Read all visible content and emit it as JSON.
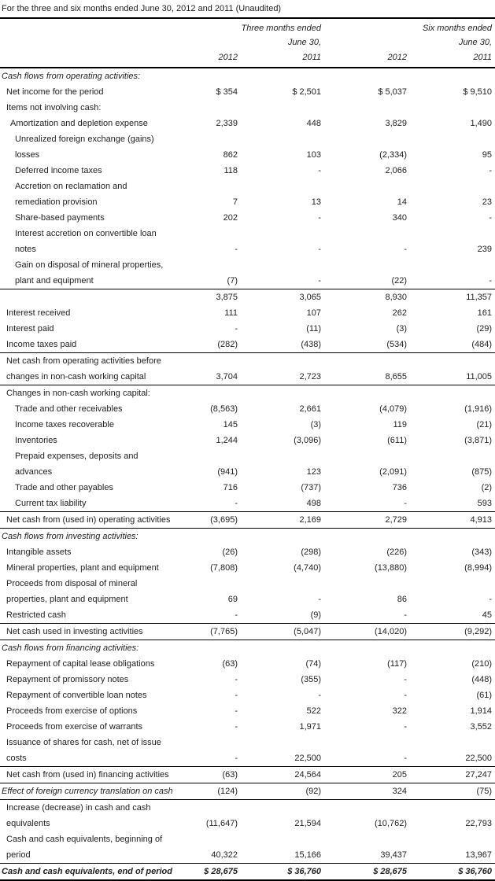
{
  "title": "For the three and six months ended June 30, 2012 and 2011 (Unaudited)",
  "colors": {
    "text": "#222222",
    "border": "#000000",
    "background": "#ffffff"
  },
  "header": {
    "group1_line1": "Three months ended",
    "group1_line2": "June 30,",
    "group2_line1": "Six months ended",
    "group2_line2": "June 30,",
    "years": [
      "2012",
      "2011",
      "2012",
      "2011"
    ]
  },
  "rows": [
    {
      "label": "Cash flows from operating activities:",
      "style": "section",
      "indent": 0,
      "values": [
        "",
        "",
        "",
        ""
      ]
    },
    {
      "label": "Net income for the period",
      "style": "item",
      "indent": 1,
      "values": [
        "$ 354",
        "$ 2,501",
        "$ 5,037",
        "$ 9,510"
      ]
    },
    {
      "label": "Items not involving cash:",
      "style": "item",
      "indent": 1,
      "values": [
        "",
        "",
        "",
        ""
      ]
    },
    {
      "label": "Amortization and depletion expense",
      "style": "item",
      "indent": 2,
      "values": [
        "2,339",
        "448",
        "3,829",
        "1,490"
      ]
    },
    {
      "label": "Unrealized foreign exchange (gains)\nlosses",
      "style": "item",
      "indent": 3,
      "values": [
        "862",
        "103",
        "(2,334)",
        "95"
      ]
    },
    {
      "label": "Deferred income taxes",
      "style": "item",
      "indent": 3,
      "values": [
        "118",
        "-",
        "2,066",
        "-"
      ]
    },
    {
      "label": "Accretion on reclamation and\nremediation provision",
      "style": "item",
      "indent": 3,
      "values": [
        "7",
        "13",
        "14",
        "23"
      ]
    },
    {
      "label": "Share-based payments",
      "style": "item",
      "indent": 3,
      "values": [
        "202",
        "-",
        "340",
        "-"
      ]
    },
    {
      "label": "Interest accretion on convertible loan\nnotes",
      "style": "item",
      "indent": 3,
      "values": [
        "-",
        "-",
        "-",
        "239"
      ]
    },
    {
      "label": "Gain on disposal of mineral properties,\nplant and equipment",
      "style": "item",
      "indent": 3,
      "values": [
        "(7)",
        "-",
        "(22)",
        "-"
      ],
      "border_bottom": true
    },
    {
      "label": "",
      "style": "item",
      "indent": 1,
      "values": [
        "3,875",
        "3,065",
        "8,930",
        "11,357"
      ]
    },
    {
      "label": "Interest received",
      "style": "item",
      "indent": 1,
      "values": [
        "111",
        "107",
        "262",
        "161"
      ]
    },
    {
      "label": "Interest paid",
      "style": "item",
      "indent": 1,
      "values": [
        "-",
        "(11)",
        "(3)",
        "(29)"
      ]
    },
    {
      "label": "Income taxes paid",
      "style": "item",
      "indent": 1,
      "values": [
        "(282)",
        "(438)",
        "(534)",
        "(484)"
      ],
      "border_bottom": true
    },
    {
      "label": "Net cash from operating activities before\nchanges in non-cash working capital",
      "style": "item",
      "indent": 1,
      "values": [
        "3,704",
        "2,723",
        "8,655",
        "11,005"
      ],
      "border_bottom": true
    },
    {
      "label": "Changes in non-cash working capital:",
      "style": "item",
      "indent": 1,
      "values": [
        "",
        "",
        "",
        ""
      ]
    },
    {
      "label": "Trade and other receivables",
      "style": "item",
      "indent": 3,
      "values": [
        "(8,563)",
        "2,661",
        "(4,079)",
        "(1,916)"
      ]
    },
    {
      "label": "Income taxes recoverable",
      "style": "item",
      "indent": 3,
      "values": [
        "145",
        "(3)",
        "119",
        "(21)"
      ]
    },
    {
      "label": "Inventories",
      "style": "item",
      "indent": 3,
      "values": [
        "1,244",
        "(3,096)",
        "(611)",
        "(3,871)"
      ]
    },
    {
      "label": "Prepaid expenses, deposits and\nadvances",
      "style": "item",
      "indent": 3,
      "values": [
        "(941)",
        "123",
        "(2,091)",
        "(875)"
      ]
    },
    {
      "label": "Trade and other payables",
      "style": "item",
      "indent": 3,
      "values": [
        "716",
        "(737)",
        "736",
        "(2)"
      ]
    },
    {
      "label": "Current tax liability",
      "style": "item",
      "indent": 3,
      "values": [
        "-",
        "498",
        "-",
        "593"
      ],
      "border_bottom": true
    },
    {
      "label": "Net cash from (used in) operating activities",
      "style": "item",
      "indent": 1,
      "values": [
        "(3,695)",
        "2,169",
        "2,729",
        "4,913"
      ],
      "border_bottom": true
    },
    {
      "label": "Cash flows from investing activities:",
      "style": "section",
      "indent": 0,
      "values": [
        "",
        "",
        "",
        ""
      ]
    },
    {
      "label": "Intangible assets",
      "style": "item",
      "indent": 1,
      "values": [
        "(26)",
        "(298)",
        "(226)",
        "(343)"
      ]
    },
    {
      "label": "Mineral properties, plant and equipment",
      "style": "item",
      "indent": 1,
      "values": [
        "(7,808)",
        "(4,740)",
        "(13,880)",
        "(8,994)"
      ]
    },
    {
      "label": "Proceeds from disposal of mineral\nproperties, plant and equipment",
      "style": "item",
      "indent": 1,
      "values": [
        "69",
        "-",
        "86",
        "-"
      ]
    },
    {
      "label": "Restricted cash",
      "style": "item",
      "indent": 1,
      "values": [
        "-",
        "(9)",
        "-",
        "45"
      ],
      "border_bottom": true
    },
    {
      "label": "Net cash used in investing activities",
      "style": "item",
      "indent": 1,
      "values": [
        "(7,765)",
        "(5,047)",
        "(14,020)",
        "(9,292)"
      ],
      "border_bottom": true
    },
    {
      "label": "Cash flows from financing activities:",
      "style": "section",
      "indent": 0,
      "values": [
        "",
        "",
        "",
        ""
      ]
    },
    {
      "label": "Repayment of capital lease obligations",
      "style": "item",
      "indent": 1,
      "values": [
        "(63)",
        "(74)",
        "(117)",
        "(210)"
      ]
    },
    {
      "label": "Repayment of promissory notes",
      "style": "item",
      "indent": 1,
      "values": [
        "-",
        "(355)",
        "-",
        "(448)"
      ]
    },
    {
      "label": "Repayment of convertible loan notes",
      "style": "item",
      "indent": 1,
      "values": [
        "-",
        "-",
        "-",
        "(61)"
      ]
    },
    {
      "label": "Proceeds from exercise of options",
      "style": "item",
      "indent": 1,
      "values": [
        "-",
        "522",
        "322",
        "1,914"
      ]
    },
    {
      "label": "Proceeds from exercise of warrants",
      "style": "item",
      "indent": 1,
      "values": [
        "-",
        "1,971",
        "-",
        "3,552"
      ]
    },
    {
      "label": "Issuance of shares for cash, net of issue\ncosts",
      "style": "item",
      "indent": 1,
      "values": [
        "-",
        "22,500",
        "-",
        "22,500"
      ],
      "border_bottom": true
    },
    {
      "label": "Net cash from (used in) financing activities",
      "style": "item",
      "indent": 1,
      "values": [
        "(63)",
        "24,564",
        "205",
        "27,247"
      ],
      "border_bottom": true
    },
    {
      "label": "Effect of foreign currency translation on cash",
      "style": "effect",
      "indent": 0,
      "values": [
        "(124)",
        "(92)",
        "324",
        "(75)"
      ],
      "border_bottom": true
    },
    {
      "label": "Increase (decrease) in cash and cash\nequivalents",
      "style": "item",
      "indent": 1,
      "values": [
        "(11,647)",
        "21,594",
        "(10,762)",
        "22,793"
      ]
    },
    {
      "label": "Cash and cash equivalents, beginning of\nperiod",
      "style": "item",
      "indent": 1,
      "values": [
        "40,322",
        "15,166",
        "39,437",
        "13,967"
      ],
      "border_bottom": true
    },
    {
      "label": "Cash and cash equivalents, end of period",
      "style": "total",
      "indent": 0,
      "values": [
        "$ 28,675",
        "$ 36,760",
        "$ 28,675",
        "$ 36,760"
      ],
      "thick_bottom": true
    }
  ]
}
